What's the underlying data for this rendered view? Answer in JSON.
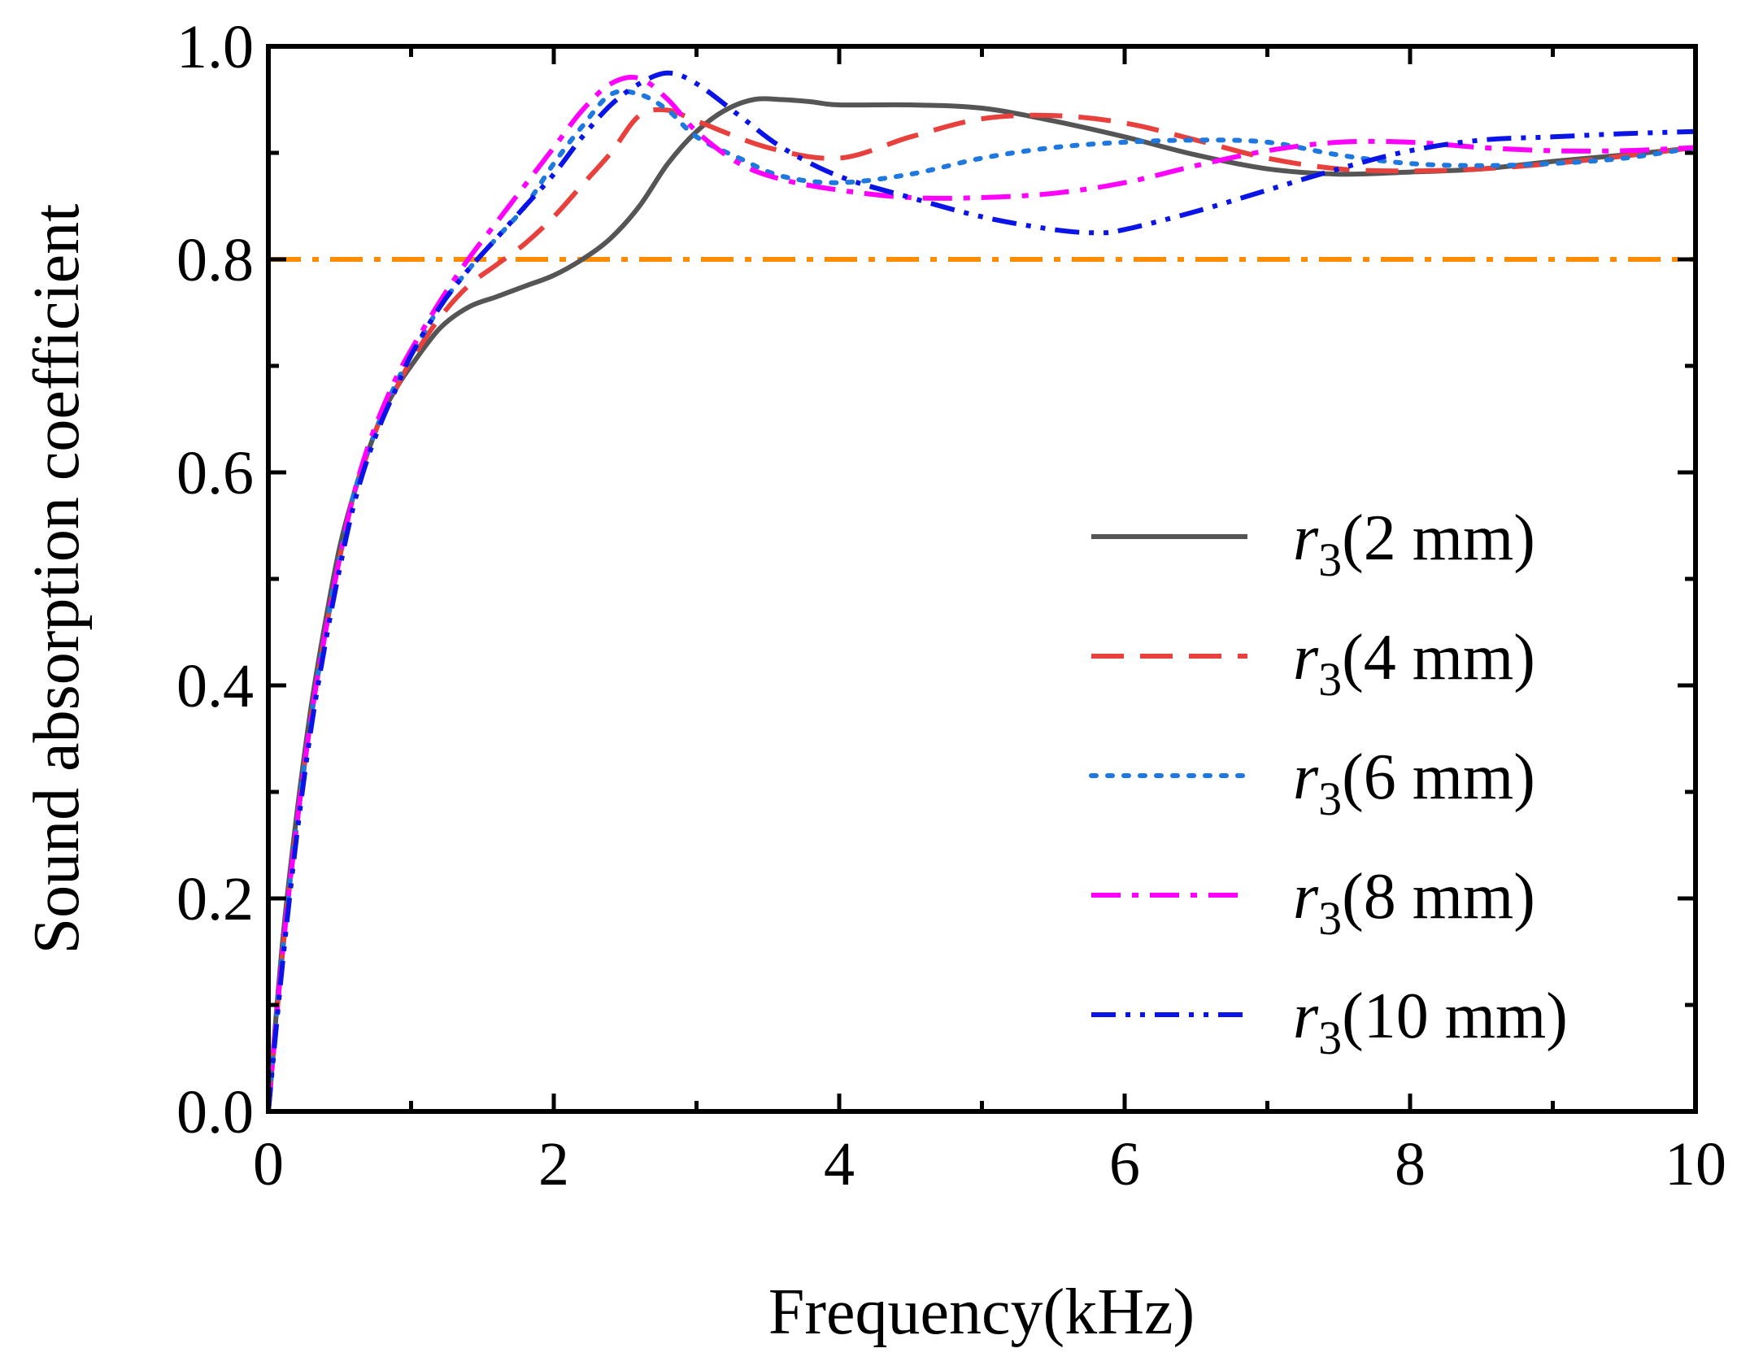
{
  "chart_data": {
    "type": "line",
    "title": "",
    "xlabel": "Frequency(kHz)",
    "ylabel": "Sound absorption coefficient",
    "xlim": [
      0,
      10
    ],
    "ylim": [
      0,
      1.0
    ],
    "xticks": [
      "0",
      "2",
      "4",
      "6",
      "8",
      "10"
    ],
    "yticks": [
      "0.0",
      "0.2",
      "0.4",
      "0.6",
      "0.8",
      "1.0"
    ],
    "reference_line": {
      "y": 0.8,
      "color": "#FF8C00"
    },
    "legend_position": "center-right",
    "series": [
      {
        "name": "r3(2 mm)",
        "prefix": "r",
        "sub": "3",
        "suffix": "(2 mm)",
        "color": "#555555",
        "dash": "solid",
        "x": [
          0,
          0.1,
          0.2,
          0.3,
          0.4,
          0.5,
          0.6,
          0.7,
          0.8,
          0.9,
          1.0,
          1.2,
          1.4,
          1.6,
          1.8,
          2.0,
          2.2,
          2.4,
          2.6,
          2.8,
          3.0,
          3.2,
          3.4,
          3.6,
          3.8,
          4.0,
          4.5,
          5.0,
          5.5,
          6.0,
          6.5,
          7.0,
          7.5,
          8.0,
          8.5,
          9.0,
          9.5,
          10.0
        ],
        "y": [
          0,
          0.16,
          0.28,
          0.38,
          0.46,
          0.53,
          0.58,
          0.62,
          0.655,
          0.68,
          0.7,
          0.735,
          0.755,
          0.765,
          0.775,
          0.785,
          0.8,
          0.82,
          0.85,
          0.89,
          0.92,
          0.94,
          0.95,
          0.95,
          0.948,
          0.945,
          0.945,
          0.942,
          0.93,
          0.915,
          0.898,
          0.885,
          0.88,
          0.882,
          0.885,
          0.892,
          0.898,
          0.905
        ]
      },
      {
        "name": "r3(4 mm)",
        "prefix": "r",
        "sub": "3",
        "suffix": "(4 mm)",
        "color": "#E8403C",
        "dash": "long-dash",
        "x": [
          0,
          0.1,
          0.2,
          0.3,
          0.4,
          0.5,
          0.6,
          0.7,
          0.8,
          0.9,
          1.0,
          1.2,
          1.4,
          1.6,
          1.8,
          2.0,
          2.2,
          2.4,
          2.6,
          2.8,
          3.0,
          3.5,
          4.0,
          4.5,
          5.0,
          5.5,
          6.0,
          6.5,
          7.0,
          7.5,
          8.0,
          8.5,
          9.0,
          9.5,
          10.0
        ],
        "y": [
          0,
          0.15,
          0.27,
          0.37,
          0.45,
          0.52,
          0.58,
          0.62,
          0.655,
          0.68,
          0.705,
          0.745,
          0.775,
          0.795,
          0.815,
          0.84,
          0.87,
          0.9,
          0.935,
          0.94,
          0.93,
          0.905,
          0.895,
          0.915,
          0.932,
          0.935,
          0.928,
          0.912,
          0.895,
          0.885,
          0.883,
          0.885,
          0.89,
          0.897,
          0.905
        ]
      },
      {
        "name": "r3(6 mm)",
        "prefix": "r",
        "sub": "3",
        "suffix": "(6 mm)",
        "color": "#1E78E0",
        "dash": "dot",
        "x": [
          0,
          0.1,
          0.2,
          0.3,
          0.4,
          0.5,
          0.6,
          0.7,
          0.8,
          0.9,
          1.0,
          1.2,
          1.4,
          1.6,
          1.8,
          2.0,
          2.2,
          2.4,
          2.6,
          2.8,
          3.0,
          3.3,
          3.6,
          4.0,
          4.5,
          5.0,
          5.5,
          6.0,
          6.5,
          7.0,
          7.5,
          8.0,
          8.5,
          9.0,
          9.5,
          10.0
        ],
        "y": [
          0,
          0.15,
          0.27,
          0.37,
          0.45,
          0.52,
          0.58,
          0.62,
          0.655,
          0.685,
          0.71,
          0.755,
          0.79,
          0.82,
          0.85,
          0.89,
          0.925,
          0.955,
          0.955,
          0.94,
          0.915,
          0.895,
          0.878,
          0.872,
          0.88,
          0.895,
          0.905,
          0.91,
          0.912,
          0.91,
          0.898,
          0.89,
          0.888,
          0.89,
          0.895,
          0.905
        ]
      },
      {
        "name": "r3(8 mm)",
        "prefix": "r",
        "sub": "3",
        "suffix": "(8 mm)",
        "color": "#FF00FF",
        "dash": "dash-dot",
        "x": [
          0,
          0.1,
          0.2,
          0.3,
          0.4,
          0.5,
          0.6,
          0.7,
          0.8,
          0.9,
          1.0,
          1.2,
          1.4,
          1.6,
          1.8,
          2.0,
          2.2,
          2.4,
          2.6,
          2.8,
          3.0,
          3.3,
          3.6,
          4.0,
          4.5,
          5.0,
          5.5,
          6.0,
          6.5,
          7.0,
          7.5,
          8.0,
          8.5,
          9.0,
          9.5,
          10.0
        ],
        "y": [
          0,
          0.15,
          0.27,
          0.37,
          0.45,
          0.52,
          0.58,
          0.625,
          0.66,
          0.69,
          0.715,
          0.76,
          0.8,
          0.835,
          0.87,
          0.905,
          0.94,
          0.965,
          0.97,
          0.95,
          0.92,
          0.89,
          0.875,
          0.865,
          0.858,
          0.858,
          0.862,
          0.872,
          0.888,
          0.902,
          0.91,
          0.91,
          0.905,
          0.902,
          0.902,
          0.905
        ]
      },
      {
        "name": "r3(10 mm)",
        "prefix": "r",
        "sub": "3",
        "suffix": "(10 mm)",
        "color": "#0A14E6",
        "dash": "dash-dot-dot",
        "x": [
          0,
          0.1,
          0.2,
          0.3,
          0.4,
          0.5,
          0.6,
          0.7,
          0.8,
          0.9,
          1.0,
          1.2,
          1.4,
          1.6,
          1.8,
          2.0,
          2.2,
          2.4,
          2.6,
          2.8,
          3.0,
          3.3,
          3.6,
          4.0,
          4.5,
          5.0,
          5.5,
          5.8,
          6.0,
          6.5,
          7.0,
          7.5,
          8.0,
          8.5,
          9.0,
          9.5,
          10.0
        ],
        "y": [
          0,
          0.14,
          0.26,
          0.36,
          0.44,
          0.51,
          0.57,
          0.615,
          0.65,
          0.68,
          0.71,
          0.755,
          0.79,
          0.82,
          0.85,
          0.88,
          0.915,
          0.945,
          0.965,
          0.975,
          0.965,
          0.935,
          0.905,
          0.878,
          0.858,
          0.84,
          0.828,
          0.825,
          0.828,
          0.845,
          0.865,
          0.885,
          0.902,
          0.912,
          0.915,
          0.918,
          0.92
        ]
      }
    ]
  }
}
